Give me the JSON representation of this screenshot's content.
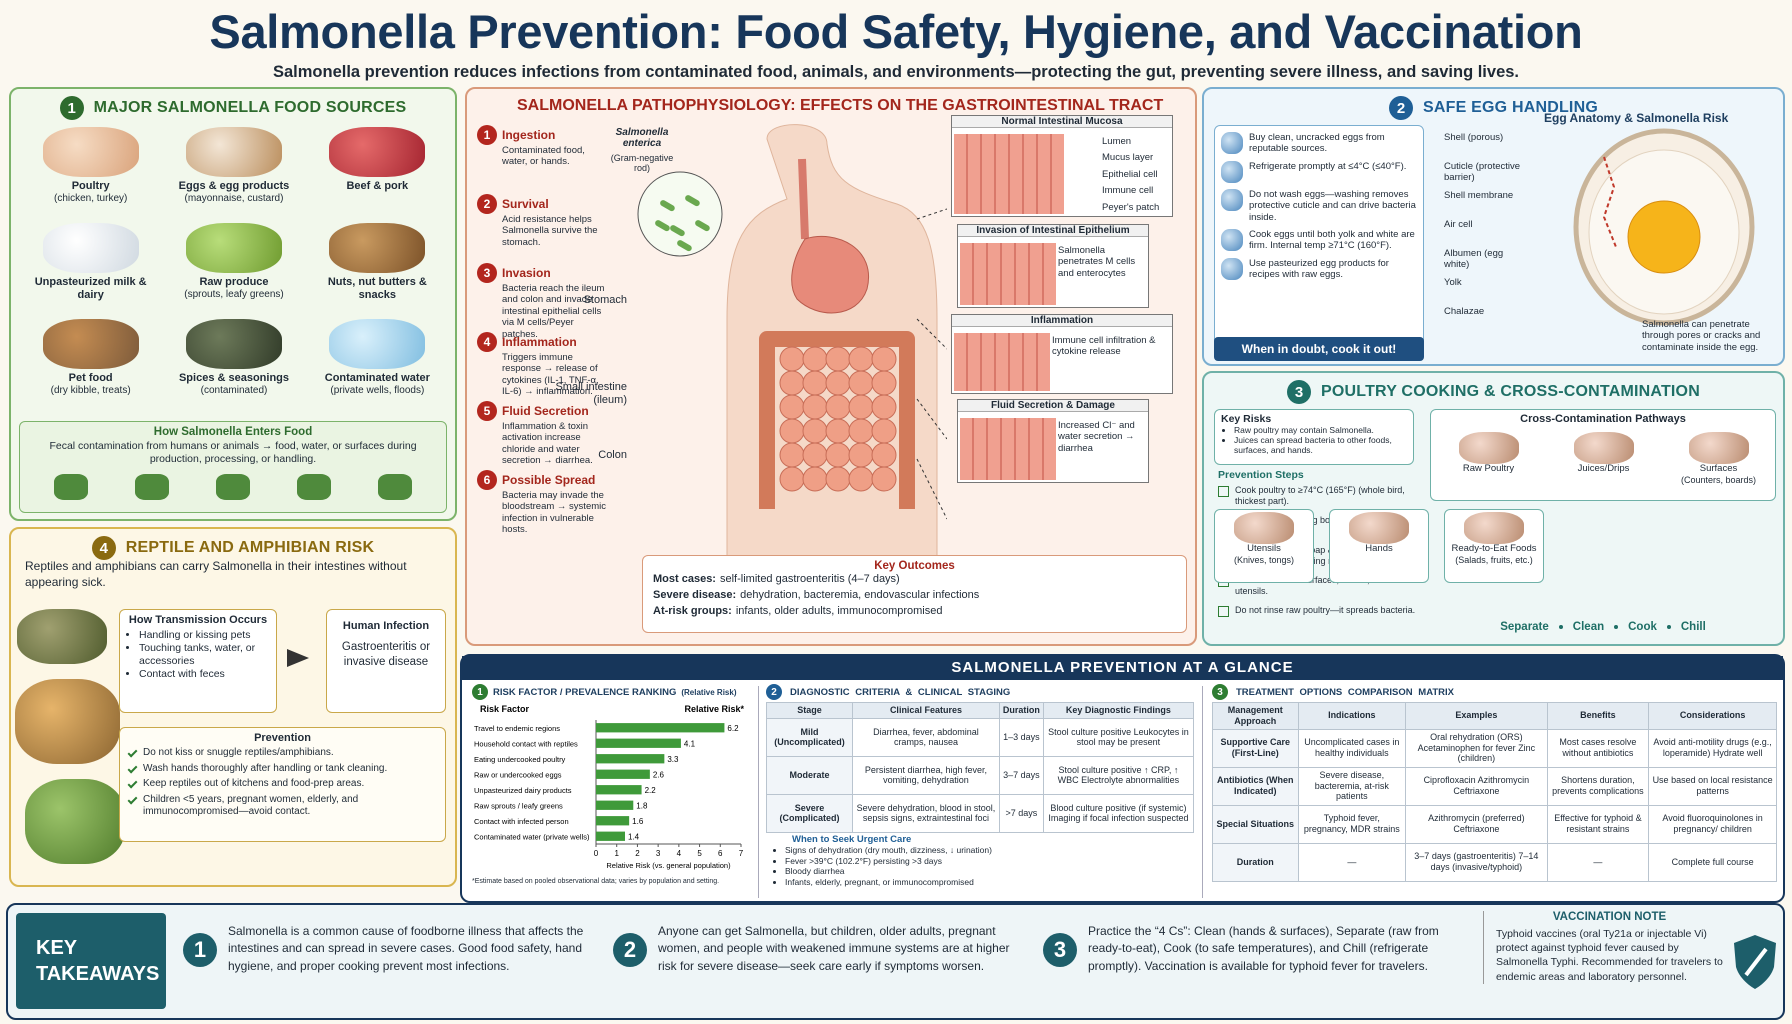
{
  "header": {
    "title": "Salmonella Prevention: Food Safety, Hygiene, and Vaccination",
    "subtitle": "Salmonella prevention reduces infections from contaminated food, animals, and environments—protecting the gut, preventing severe illness, and saving lives."
  },
  "food_sources": {
    "badge": "1",
    "title": "MAJOR SALMONELLA FOOD SOURCES",
    "items": [
      {
        "label": "Poultry",
        "detail": "(chicken, turkey)"
      },
      {
        "label": "Eggs & egg products",
        "detail": "(mayonnaise, custard)"
      },
      {
        "label": "Beef & pork"
      },
      {
        "label": "Unpasteurized milk & dairy"
      },
      {
        "label": "Raw produce",
        "detail": "(sprouts, leafy greens)"
      },
      {
        "label": "Nuts, nut butters & snacks"
      },
      {
        "label": "Pet food",
        "detail": "(dry kibble, treats)"
      },
      {
        "label": "Spices & seasonings",
        "detail": "(contaminated)"
      },
      {
        "label": "Contaminated water",
        "detail": "(private wells, floods)"
      }
    ],
    "entry": {
      "title": "How Salmonella Enters Food",
      "text": "Fecal contamination from humans or animals → food, water, or surfaces during production, processing, or handling."
    }
  },
  "reptile": {
    "badge": "4",
    "title": "REPTILE AND AMPHIBIAN RISK",
    "intro": "Reptiles and amphibians can carry Salmonella in their intestines without appearing sick.",
    "transmission": {
      "title": "How Transmission Occurs",
      "items": [
        "Handling or kissing pets",
        "Touching tanks, water, or accessories",
        "Contact with feces"
      ]
    },
    "infection": {
      "title": "Human Infection",
      "text": "Gastroenteritis or invasive disease"
    },
    "prevention": {
      "title": "Prevention",
      "items": [
        "Do not kiss or snuggle reptiles/amphibians.",
        "Wash hands thoroughly after handling or tank cleaning.",
        "Keep reptiles out of kitchens and food-prep areas.",
        "Children <5 years, pregnant women, elderly, and immunocompromised—avoid contact."
      ]
    }
  },
  "pathophysiology": {
    "title": "SALMONELLA PATHOPHYSIOLOGY: EFFECTS ON THE GASTROINTESTINAL TRACT",
    "steps": [
      {
        "number": "1",
        "title": "Ingestion",
        "text": "Contaminated food, water, or hands."
      },
      {
        "number": "2",
        "title": "Survival",
        "text": "Acid resistance helps Salmonella survive the stomach."
      },
      {
        "number": "3",
        "title": "Invasion",
        "text": "Bacteria reach the ileum and colon and invade intestinal epithelial cells via M cells/Peyer patches."
      },
      {
        "number": "4",
        "title": "Inflammation",
        "text": "Triggers immune response → release of cytokines (IL-1, TNF-α, IL-6) → inflammation."
      },
      {
        "number": "5",
        "title": "Fluid Secretion",
        "text": "Inflammation & toxin activation increase chloride and water secretion → diarrhea."
      },
      {
        "number": "6",
        "title": "Possible Spread",
        "text": "Bacteria may invade the bloodstream → systemic infection in vulnerable hosts."
      }
    ],
    "organism": {
      "name": "Salmonella enterica",
      "note": "(Gram-negative rod)"
    },
    "organs": [
      "Stomach",
      "Small intestine (ileum)",
      "Colon"
    ],
    "panels": [
      {
        "title": "Normal Intestinal Mucosa",
        "labels": [
          "Lumen",
          "Mucus layer",
          "Epithelial cell",
          "Immune cell",
          "Peyer's patch"
        ]
      },
      {
        "title": "Invasion of Intestinal Epithelium",
        "labels": [
          "Salmonella penetrates M cells and enterocytes"
        ]
      },
      {
        "title": "Inflammation",
        "labels": [
          "Immune cell infiltration & cytokine release"
        ]
      },
      {
        "title": "Fluid Secretion & Damage",
        "labels": [
          "Increased Cl⁻ and water secretion → diarrhea"
        ]
      }
    ],
    "outcomes": {
      "title": "Key Outcomes",
      "items": [
        {
          "label": "Most cases:",
          "text": "self-limited gastroenteritis (4–7 days)"
        },
        {
          "label": "Severe disease:",
          "text": "dehydration, bacteremia, endovascular infections"
        },
        {
          "label": "At-risk groups:",
          "text": "infants, older adults, immunocompromised"
        }
      ]
    }
  },
  "egg": {
    "badge": "2",
    "title": "SAFE EGG HANDLING",
    "steps": [
      "Buy clean, uncracked eggs from reputable sources.",
      "Refrigerate promptly at ≤4°C (≤40°F).",
      "Do not wash eggs—washing removes protective cuticle and can drive bacteria inside.",
      "Cook eggs until both yolk and white are firm. Internal temp ≥71°C (160°F).",
      "Use pasteurized egg products for recipes with raw eggs."
    ],
    "banner": "When in doubt, cook it out!",
    "anatomy_title": "Egg Anatomy & Salmonella Risk",
    "parts": [
      "Shell (porous)",
      "Cuticle (protective barrier)",
      "Shell membrane",
      "Air cell",
      "Albumen (egg white)",
      "Yolk",
      "Chalazae"
    ],
    "note": "Salmonella can penetrate through pores or cracks and contaminate inside the egg."
  },
  "poultry": {
    "badge": "3",
    "title": "POULTRY COOKING & CROSS-CONTAMINATION",
    "risks": {
      "title": "Key Risks",
      "items": [
        "Raw poultry may contain Salmonella.",
        "Juices can spread bacteria to other foods, surfaces, and hands."
      ]
    },
    "prevention": {
      "title": "Prevention Steps",
      "items": [
        "Cook poultry to ≥74°C (165°F) (whole bird, thickest part).",
        "Use separate cutting boards for raw meat and produce.",
        "Wash hands with soap & water for 20 seconds after handling raw poultry.",
        "Clean & sanitize surfaces, knives, and utensils.",
        "Do not rinse raw poultry—it spreads bacteria."
      ]
    },
    "pathways": {
      "title": "Cross-Contamination Pathways",
      "sources": [
        {
          "label": "Raw Poultry"
        },
        {
          "label": "Juices/Drips"
        },
        {
          "label": "Surfaces",
          "detail": "(Counters, boards)"
        }
      ],
      "destinations": [
        {
          "label": "Utensils",
          "detail": "(Knives, tongs)"
        },
        {
          "label": "Hands"
        },
        {
          "label": "Ready-to-Eat Foods",
          "detail": "(Salads, fruits, etc.)"
        }
      ]
    },
    "motto": [
      "Separate",
      "Clean",
      "Cook",
      "Chill"
    ]
  },
  "glance": {
    "title": "SALMONELLA PREVENTION AT A GLANCE",
    "risk_badge": "1",
    "diagnostic": {
      "badge": "2",
      "title": "DIAGNOSTIC CRITERIA & CLINICAL STAGING",
      "columns": [
        "Stage",
        "Clinical Features",
        "Duration",
        "Key Diagnostic Findings"
      ],
      "rows": [
        [
          "Mild (Uncomplicated)",
          "Diarrhea, fever, abdominal cramps, nausea",
          "1–3 days",
          "Stool culture positive Leukocytes in stool may be present"
        ],
        [
          "Moderate",
          "Persistent diarrhea, high fever, vomiting, dehydration",
          "3–7 days",
          "Stool culture positive ↑ CRP, ↑ WBC Electrolyte abnormalities"
        ],
        [
          "Severe (Complicated)",
          "Severe dehydration, blood in stool, sepsis signs, extraintestinal foci",
          ">7 days",
          "Blood culture positive (if systemic) Imaging if focal infection suspected"
        ]
      ],
      "urgent": {
        "title": "When to Seek Urgent Care",
        "items": [
          "Signs of dehydration (dry mouth, dizziness, ↓ urination)",
          "Fever >39°C (102.2°F) persisting >3 days",
          "Bloody diarrhea",
          "Infants, elderly, pregnant, or immunocompromised"
        ]
      }
    },
    "treatment": {
      "badge": "3",
      "title": "TREATMENT OPTIONS COMPARISON MATRIX",
      "columns": [
        "Management Approach",
        "Indications",
        "Examples",
        "Benefits",
        "Considerations"
      ],
      "rows": [
        [
          "Supportive Care (First-Line)",
          "Uncomplicated cases in healthy individuals",
          "Oral rehydration (ORS) Acetaminophen for fever Zinc (children)",
          "Most cases resolve without antibiotics",
          "Avoid anti-motility drugs (e.g., loperamide) Hydrate well"
        ],
        [
          "Antibiotics (When Indicated)",
          "Severe disease, bacteremia, at-risk patients",
          "Ciprofloxacin Azithromycin Ceftriaxone",
          "Shortens duration, prevents complications",
          "Use based on local resistance patterns"
        ],
        [
          "Special Situations",
          "Typhoid fever, pregnancy, MDR strains",
          "Azithromycin (preferred) Ceftriaxone",
          "Effective for typhoid & resistant strains",
          "Avoid fluoroquinolones in pregnancy/ children"
        ],
        [
          "Duration",
          "—",
          "3–7 days (gastroenteritis) 7–14 days (invasive/typhoid)",
          "—",
          "Complete full course"
        ]
      ]
    }
  },
  "chart_data": {
    "type": "bar",
    "orientation": "horizontal",
    "title": "RISK FACTOR / PREVALENCE RANKING",
    "subtitle": "(Relative Risk)",
    "category_header": "Risk Factor",
    "value_header": "Relative Risk*",
    "categories": [
      "Travel to endemic regions",
      "Household contact with reptiles",
      "Eating undercooked poultry",
      "Raw or undercooked eggs",
      "Unpasteurized dairy products",
      "Raw sprouts / leafy greens",
      "Contact with infected person",
      "Contaminated water (private wells)"
    ],
    "values": [
      6.2,
      4.1,
      3.3,
      2.6,
      2.2,
      1.8,
      1.6,
      1.4
    ],
    "color": "#3f9a3a",
    "xlim": [
      0,
      7
    ],
    "xticks": [
      0,
      1,
      2,
      3,
      4,
      5,
      6,
      7
    ],
    "xlabel": "Relative Risk (vs. general population)",
    "footnote": "*Estimate based on pooled observational data; varies by population and setting."
  },
  "takeaways": {
    "title": "KEY TAKEAWAYS",
    "items": [
      {
        "number": "1",
        "text": "Salmonella is a common cause of foodborne illness that affects the intestines and can spread in severe cases. Good food safety, hand hygiene, and proper cooking prevent most infections."
      },
      {
        "number": "2",
        "text": "Anyone can get Salmonella, but children, older adults, pregnant women, and people with weakened immune systems are at higher risk for severe disease—seek care early if symptoms worsen."
      },
      {
        "number": "3",
        "text": "Practice the “4 Cs”: Clean (hands & surfaces), Separate (raw from ready-to-eat), Cook (to safe temperatures), and Chill (refrigerate promptly). Vaccination is available for typhoid fever for travelers."
      }
    ],
    "vaccination": {
      "title": "VACCINATION NOTE",
      "text": "Typhoid vaccines (oral Ty21a or injectable Vi) protect against typhoid fever caused by Salmonella Typhi. Recommended for travelers to endemic areas and laboratory personnel."
    }
  }
}
